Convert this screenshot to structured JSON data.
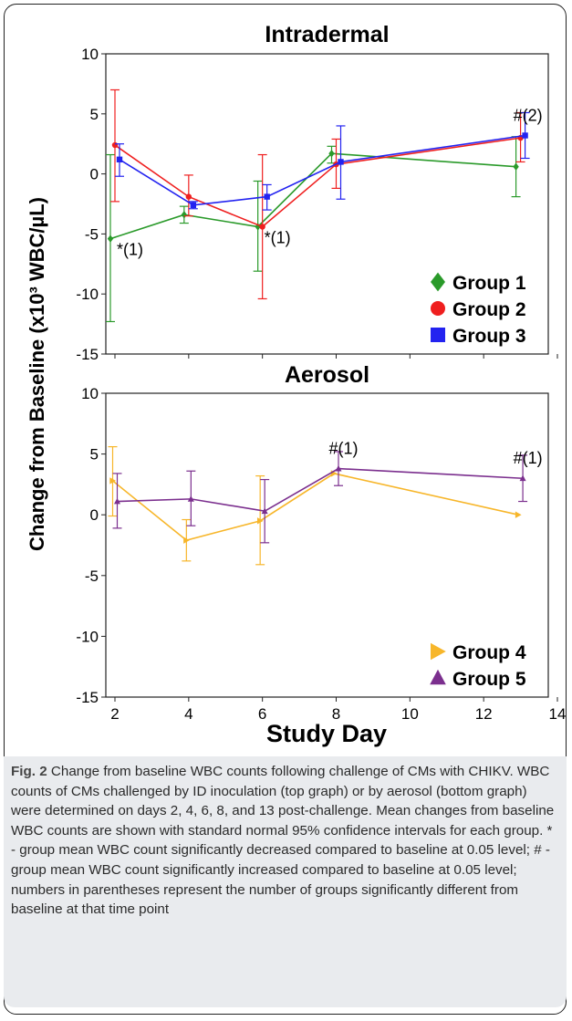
{
  "figure": {
    "ylabel": "Change from Baseline (x10³ WBC/µL)",
    "xlabel": "Study Day"
  },
  "caption": {
    "label": "Fig. 2",
    "text": "Change from baseline WBC counts following challenge of CMs with CHIKV. WBC counts of CMs challenged by ID inoculation (top graph) or by aerosol (bottom graph) were determined on days 2, 4, 6, 8, and 13 post-challenge. Mean changes from baseline WBC counts are shown with standard normal 95% confidence intervals for each group. * - group mean WBC count significantly decreased compared to baseline at 0.05 level; # - group mean WBC count significantly increased compared to baseline at 0.05 level; numbers in parentheses represent the number of groups significantly different from baseline at that time point"
  },
  "chart_data": [
    {
      "type": "line",
      "title": "Intradermal",
      "x_ticks": [],
      "ylim": [
        -15,
        10
      ],
      "y_ticks": [
        -15,
        -10,
        -5,
        0,
        5,
        10
      ],
      "legend_position": "bottom-right",
      "series": [
        {
          "name": "Group 1",
          "color": "#2a9a2a",
          "marker": "diamond",
          "points": [
            {
              "x": 2,
              "y": -5.4,
              "lo": -12.3,
              "hi": 1.6
            },
            {
              "x": 4,
              "y": -3.4,
              "lo": -4.1,
              "hi": -2.7
            },
            {
              "x": 6,
              "y": -4.4,
              "lo": -8.1,
              "hi": -0.6
            },
            {
              "x": 8,
              "y": 1.7,
              "lo": 0.9,
              "hi": 2.3
            },
            {
              "x": 13,
              "y": 0.6,
              "lo": -1.9,
              "hi": 3.1
            }
          ]
        },
        {
          "name": "Group 2",
          "color": "#ef1f1f",
          "marker": "circle",
          "points": [
            {
              "x": 2,
              "y": 2.4,
              "lo": -2.3,
              "hi": 7.0
            },
            {
              "x": 4,
              "y": -1.9,
              "lo": -3.5,
              "hi": -0.1
            },
            {
              "x": 6,
              "y": -4.4,
              "lo": -10.4,
              "hi": 1.6
            },
            {
              "x": 8,
              "y": 0.8,
              "lo": -1.2,
              "hi": 2.9
            },
            {
              "x": 13,
              "y": 3.0,
              "lo": 1.0,
              "hi": 5.1
            }
          ]
        },
        {
          "name": "Group 3",
          "color": "#2323f0",
          "marker": "square",
          "points": [
            {
              "x": 2,
              "y": 1.2,
              "lo": -0.2,
              "hi": 2.5
            },
            {
              "x": 4,
              "y": -2.6,
              "lo": -2.9,
              "hi": -2.3
            },
            {
              "x": 6,
              "y": -1.9,
              "lo": -3.0,
              "hi": -0.9
            },
            {
              "x": 8,
              "y": 1.0,
              "lo": -2.1,
              "hi": 4.0
            },
            {
              "x": 13,
              "y": 3.2,
              "lo": 1.3,
              "hi": 5.1
            }
          ]
        }
      ],
      "annotations": [
        {
          "text": "*(1)",
          "x": 2,
          "y": -5.4
        },
        {
          "text": "*(1)",
          "x": 6,
          "y": -4.4
        },
        {
          "text": "#(2)",
          "x": 13,
          "y": 3.2
        }
      ]
    },
    {
      "type": "line",
      "title": "Aerosol",
      "xlim": [
        2,
        14
      ],
      "x_ticks": [
        2,
        4,
        6,
        8,
        10,
        12,
        14
      ],
      "ylim": [
        -15,
        10
      ],
      "y_ticks": [
        -15,
        -10,
        -5,
        0,
        5,
        10
      ],
      "legend_position": "bottom-right",
      "series": [
        {
          "name": "Group 4",
          "color": "#f7b62a",
          "marker": "triangle-right",
          "points": [
            {
              "x": 2,
              "y": 2.8,
              "lo": -0.1,
              "hi": 5.6
            },
            {
              "x": 4,
              "y": -2.1,
              "lo": -3.8,
              "hi": -0.4
            },
            {
              "x": 6,
              "y": -0.5,
              "lo": -4.1,
              "hi": 3.2
            },
            {
              "x": 8,
              "y": 3.4,
              "lo": 3.4,
              "hi": 3.4
            },
            {
              "x": 13,
              "y": 0.0,
              "lo": 0.0,
              "hi": 0.0
            }
          ]
        },
        {
          "name": "Group 5",
          "color": "#7b2f8e",
          "marker": "triangle-up",
          "points": [
            {
              "x": 2,
              "y": 1.1,
              "lo": -1.1,
              "hi": 3.4
            },
            {
              "x": 4,
              "y": 1.3,
              "lo": -0.9,
              "hi": 3.6
            },
            {
              "x": 6,
              "y": 0.3,
              "lo": -2.3,
              "hi": 2.9
            },
            {
              "x": 8,
              "y": 3.8,
              "lo": 2.4,
              "hi": 5.2
            },
            {
              "x": 13,
              "y": 3.0,
              "lo": 1.1,
              "hi": 4.9
            }
          ]
        }
      ],
      "annotations": [
        {
          "text": "#(1)",
          "x": 8,
          "y": 3.8
        },
        {
          "text": "#(1)",
          "x": 13,
          "y": 3.0
        }
      ]
    }
  ]
}
